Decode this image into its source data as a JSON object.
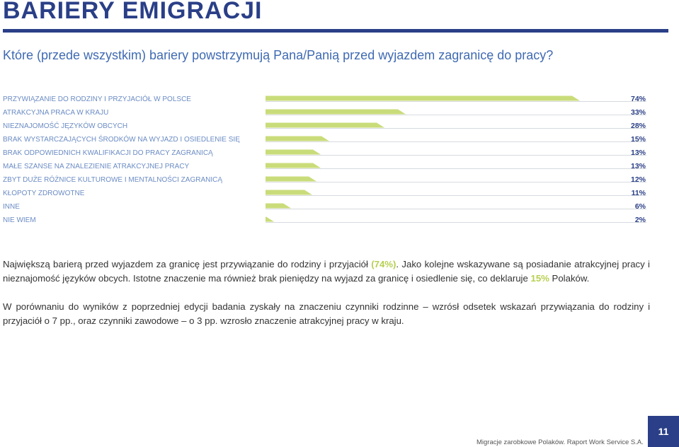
{
  "header": {
    "title": "BARIERY EMIGRACJI",
    "subtitle": "Które (przede wszystkim) bariery powstrzymują Pana/Panią przed wyjazdem zagranicę do pracy?"
  },
  "chart_data": {
    "type": "bar",
    "orientation": "horizontal",
    "categories": [
      "PRZYWIĄZANIE DO RODZINY I PRZYJACIÓŁ W POLSCE",
      "ATRAKCYJNA PRACA W KRAJU",
      "NIEZNAJOMOŚĆ JĘZYKÓW OBCYCH",
      "BRAK WYSTARCZAJĄCYCH ŚRODKÓW NA WYJAZD I OSIEDLENIE SIĘ",
      "BRAK ODPOWIEDNICH KWALIFIKACJI DO PRACY ZAGRANICĄ",
      "MAŁE SZANSE NA ZNALEZIENIE ATRAKCYJNEJ PRACY",
      "ZBYT DUŻE RÓŻNICE KULTUROWE I MENTALNOŚCI ZAGRANICĄ",
      "KŁOPOTY ZDROWOTNE",
      "INNE",
      "NIE WIEM"
    ],
    "values": [
      74,
      33,
      28,
      15,
      13,
      13,
      12,
      11,
      6,
      2
    ],
    "value_labels": [
      "74%",
      "33%",
      "28%",
      "15%",
      "13%",
      "13%",
      "12%",
      "11%",
      "6%",
      "2%"
    ],
    "xlim": [
      0,
      100
    ],
    "bar_color": "#c9dc7a",
    "label_color": "#6b8cc4",
    "value_color": "#2a3f87",
    "grid": false
  },
  "text": {
    "p1_a": "Największą barierą przed wyjazdem za granicę jest przywiązanie do rodziny i przyjaciół ",
    "p1_hl": "(74%)",
    "p1_b": ". Jako kolejne wskazywane są posiadanie atrakcyjnej pracy i nieznajomość języków obcych. Istotne znaczenie ma również brak pieniędzy na wyjazd za granicę i osiedlenie się, co deklaruje ",
    "p1_hl2": "15%",
    "p1_c": " Polaków.",
    "p2": "W porównaniu do wyników z poprzedniej edycji badania zyskały na znaczeniu czynniki rodzinne – wzrósł odsetek wskazań przywiązania do rodziny i przyjaciół o 7 pp., oraz czynniki zawodowe – o 3 pp. wzrosło znaczenie atrakcyjnej pracy w kraju."
  },
  "footer": {
    "source": "Migracje zarobkowe Polaków. Raport Work Service S.A.",
    "page_number": "11"
  },
  "colors": {
    "brand": "#2a3f87",
    "subtitle": "#3f6ab2",
    "highlight": "#b6cf50"
  }
}
